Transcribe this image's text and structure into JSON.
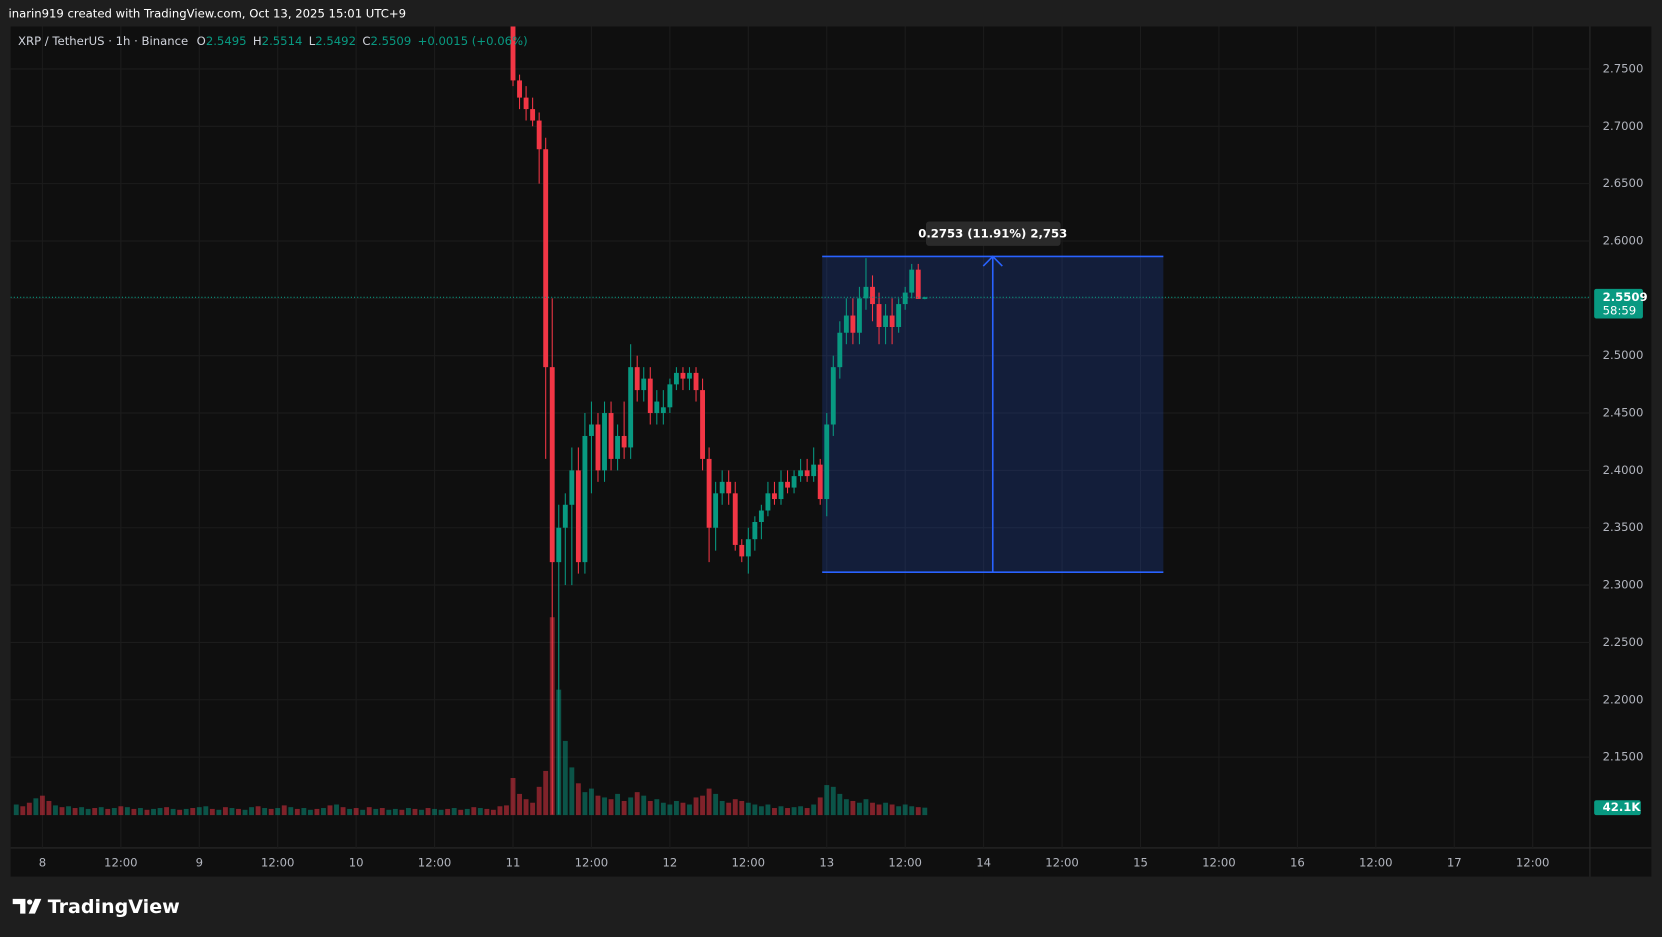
{
  "header": {
    "attribution": "inarin919 created with TradingView.com, Oct 13, 2025 15:01 UTC+9"
  },
  "footer": {
    "brand": "TradingView"
  },
  "chart_data": {
    "type": "candlestick",
    "symbol": "XRP / TetherUS · 1h · Binance",
    "ohlc_letters": [
      "O",
      "H",
      "L",
      "C"
    ],
    "change": "+0.0015 (+0.06%)",
    "up_color": "#089981",
    "down_color": "#f23645",
    "x": [
      72,
      73,
      74,
      75,
      76,
      77,
      78,
      79,
      80,
      81,
      82,
      83,
      84,
      85,
      86,
      87,
      88,
      89,
      90,
      91,
      92,
      93,
      94,
      95,
      96,
      97,
      98,
      99,
      100,
      101,
      102,
      103,
      104,
      105,
      106,
      107,
      108,
      109,
      110,
      111,
      112,
      113,
      114,
      115,
      116,
      117,
      118,
      119,
      120,
      121,
      122,
      123,
      124,
      125,
      126,
      127,
      128,
      129,
      130,
      131,
      132,
      133,
      134,
      135
    ],
    "open": [
      2.795,
      2.74,
      2.725,
      2.715,
      2.705,
      2.68,
      2.49,
      2.32,
      2.35,
      2.37,
      2.4,
      2.32,
      2.43,
      2.44,
      2.4,
      2.45,
      2.41,
      2.43,
      2.42,
      2.49,
      2.47,
      2.48,
      2.45,
      2.45,
      2.455,
      2.475,
      2.485,
      2.48,
      2.485,
      2.47,
      2.41,
      2.35,
      2.38,
      2.39,
      2.38,
      2.335,
      2.325,
      2.34,
      2.355,
      2.365,
      2.38,
      2.375,
      2.39,
      2.385,
      2.395,
      2.4,
      2.395,
      2.405,
      2.375,
      2.44,
      2.49,
      2.52,
      2.535,
      2.52,
      2.55,
      2.56,
      2.545,
      2.525,
      2.535,
      2.525,
      2.545,
      2.555,
      2.575,
      2.5495
    ],
    "high": [
      2.8,
      2.745,
      2.735,
      2.725,
      2.712,
      2.69,
      2.55,
      2.37,
      2.38,
      2.42,
      2.42,
      2.45,
      2.46,
      2.45,
      2.46,
      2.46,
      2.44,
      2.46,
      2.51,
      2.5,
      2.49,
      2.49,
      2.47,
      2.47,
      2.48,
      2.49,
      2.49,
      2.49,
      2.49,
      2.48,
      2.42,
      2.39,
      2.4,
      2.4,
      2.39,
      2.34,
      2.35,
      2.36,
      2.37,
      2.39,
      2.39,
      2.4,
      2.4,
      2.4,
      2.41,
      2.41,
      2.42,
      2.41,
      2.45,
      2.5,
      2.53,
      2.55,
      2.55,
      2.56,
      2.585,
      2.57,
      2.555,
      2.545,
      2.55,
      2.55,
      2.56,
      2.58,
      2.58,
      2.5514
    ],
    "low": [
      2.735,
      2.715,
      2.705,
      2.7,
      2.65,
      2.41,
      2.1,
      2.1,
      2.3,
      2.3,
      2.31,
      2.31,
      2.38,
      2.39,
      2.39,
      2.4,
      2.4,
      2.41,
      2.41,
      2.46,
      2.46,
      2.44,
      2.44,
      2.44,
      2.45,
      2.47,
      2.47,
      2.47,
      2.46,
      2.4,
      2.32,
      2.33,
      2.37,
      2.37,
      2.33,
      2.32,
      2.31,
      2.33,
      2.34,
      2.36,
      2.37,
      2.37,
      2.38,
      2.38,
      2.39,
      2.39,
      2.39,
      2.37,
      2.36,
      2.43,
      2.48,
      2.51,
      2.51,
      2.51,
      2.54,
      2.53,
      2.51,
      2.51,
      2.51,
      2.52,
      2.54,
      2.55,
      2.55,
      2.5492
    ],
    "close": [
      2.74,
      2.725,
      2.715,
      2.705,
      2.68,
      2.49,
      2.32,
      2.35,
      2.37,
      2.4,
      2.32,
      2.43,
      2.44,
      2.4,
      2.45,
      2.41,
      2.43,
      2.42,
      2.49,
      2.47,
      2.48,
      2.45,
      2.46,
      2.455,
      2.475,
      2.485,
      2.48,
      2.485,
      2.47,
      2.41,
      2.35,
      2.38,
      2.39,
      2.38,
      2.335,
      2.325,
      2.34,
      2.355,
      2.365,
      2.38,
      2.375,
      2.39,
      2.385,
      2.395,
      2.4,
      2.395,
      2.405,
      2.375,
      2.44,
      2.49,
      2.52,
      2.535,
      2.52,
      2.55,
      2.56,
      2.545,
      2.525,
      2.535,
      2.525,
      2.545,
      2.555,
      2.575,
      2.5495,
      2.5509
    ],
    "countdown": "58:59",
    "volume": {
      "x": [
        -4,
        -3,
        -2,
        -1,
        0,
        1,
        2,
        3,
        4,
        5,
        6,
        7,
        8,
        9,
        10,
        11,
        12,
        13,
        14,
        15,
        16,
        17,
        18,
        19,
        20,
        21,
        22,
        23,
        24,
        25,
        26,
        27,
        28,
        29,
        30,
        31,
        32,
        33,
        34,
        35,
        36,
        37,
        38,
        39,
        40,
        41,
        42,
        43,
        44,
        45,
        46,
        47,
        48,
        49,
        50,
        51,
        52,
        53,
        54,
        55,
        56,
        57,
        58,
        59,
        60,
        61,
        62,
        63,
        64,
        65,
        66,
        67,
        68,
        69,
        70,
        71,
        72,
        73,
        74,
        75,
        76,
        77,
        78,
        79,
        80,
        81,
        82,
        83,
        84,
        85,
        86,
        87,
        88,
        89,
        90,
        91,
        92,
        93,
        94,
        95,
        96,
        97,
        98,
        99,
        100,
        101,
        102,
        103,
        104,
        105,
        106,
        107,
        108,
        109,
        110,
        111,
        112,
        113,
        114,
        115,
        116,
        117,
        118,
        119,
        120,
        121,
        122,
        123,
        124,
        125,
        126,
        127,
        128,
        129,
        130,
        131,
        132,
        133,
        134,
        135
      ],
      "values": [
        60000,
        50000,
        70000,
        95000,
        110000,
        80000,
        55000,
        45000,
        50000,
        40000,
        45000,
        35000,
        40000,
        45000,
        35000,
        40000,
        50000,
        45000,
        35000,
        40000,
        30000,
        35000,
        40000,
        45000,
        35000,
        30000,
        35000,
        40000,
        45000,
        50000,
        35000,
        30000,
        45000,
        40000,
        35000,
        30000,
        45000,
        50000,
        40000,
        35000,
        40000,
        55000,
        45000,
        35000,
        40000,
        30000,
        35000,
        40000,
        55000,
        60000,
        45000,
        35000,
        40000,
        30000,
        45000,
        35000,
        40000,
        30000,
        35000,
        30000,
        40000,
        35000,
        30000,
        40000,
        35000,
        30000,
        35000,
        40000,
        30000,
        35000,
        45000,
        40000,
        35000,
        30000,
        50000,
        55000,
        210000,
        120000,
        90000,
        70000,
        160000,
        250000,
        1120000,
        710000,
        420000,
        270000,
        180000,
        130000,
        150000,
        110000,
        100000,
        90000,
        120000,
        80000,
        100000,
        130000,
        110000,
        80000,
        90000,
        70000,
        60000,
        80000,
        70000,
        60000,
        100000,
        110000,
        150000,
        120000,
        80000,
        70000,
        90000,
        80000,
        70000,
        60000,
        50000,
        60000,
        40000,
        50000,
        40000,
        45000,
        50000,
        40000,
        60000,
        100000,
        170000,
        160000,
        120000,
        90000,
        80000,
        70000,
        90000,
        70000,
        60000,
        70000,
        60000,
        50000,
        60000,
        50000,
        45000,
        42100
      ],
      "up": [
        true,
        false,
        false,
        true,
        false,
        false,
        true,
        false,
        true,
        false,
        true,
        true,
        false,
        true,
        false,
        true,
        false,
        true,
        false,
        true,
        false,
        true,
        true,
        false,
        true,
        false,
        true,
        false,
        true,
        true,
        false,
        true,
        false,
        true,
        false,
        true,
        true,
        false,
        true,
        false,
        true,
        false,
        true,
        false,
        true,
        true,
        false,
        true,
        false,
        true,
        false,
        true,
        false,
        true,
        false,
        true,
        false,
        true,
        true,
        false,
        true,
        false,
        true,
        false,
        true,
        true,
        false,
        true,
        false,
        true,
        false,
        true,
        false,
        false,
        false,
        false,
        false,
        false,
        false,
        false,
        false,
        false,
        false,
        true,
        true,
        true,
        false,
        true,
        true,
        false,
        true,
        false,
        true,
        false,
        true,
        false,
        true,
        false,
        true,
        true,
        true,
        true,
        false,
        true,
        false,
        false,
        false,
        true,
        true,
        false,
        false,
        false,
        true,
        true,
        true,
        true,
        false,
        true,
        false,
        true,
        true,
        false,
        true,
        false,
        true,
        true,
        true,
        true,
        false,
        true,
        true,
        false,
        false,
        true,
        false,
        true,
        true,
        true,
        false,
        true
      ],
      "ylim": [
        0,
        4464000
      ],
      "last_label": "42.1K"
    },
    "measure": {
      "x_start": 119.3,
      "x_end": 171.5,
      "from": 2.3112,
      "to": 2.5865,
      "label": "0.2753 (11.91%) 2,753",
      "color": "#2962ff"
    },
    "xlim": [
      -4.865,
      236.76
    ],
    "ylim": [
      2.0708,
      2.787
    ],
    "xticks": [
      {
        "value": 0,
        "label": "8"
      },
      {
        "value": 12,
        "label": "12:00"
      },
      {
        "value": 24,
        "label": "9"
      },
      {
        "value": 36,
        "label": "12:00"
      },
      {
        "value": 48,
        "label": "10"
      },
      {
        "value": 60,
        "label": "12:00"
      },
      {
        "value": 72,
        "label": "11"
      },
      {
        "value": 84,
        "label": "12:00"
      },
      {
        "value": 96,
        "label": "12"
      },
      {
        "value": 108,
        "label": "12:00"
      },
      {
        "value": 120,
        "label": "13"
      },
      {
        "value": 132,
        "label": "12:00"
      },
      {
        "value": 144,
        "label": "14"
      },
      {
        "value": 156,
        "label": "12:00"
      },
      {
        "value": 168,
        "label": "15"
      },
      {
        "value": 180,
        "label": "12:00"
      },
      {
        "value": 192,
        "label": "16"
      },
      {
        "value": 204,
        "label": "12:00"
      },
      {
        "value": 216,
        "label": "17"
      },
      {
        "value": 228,
        "label": "12:00"
      }
    ],
    "yticks": [
      {
        "value": 2.15,
        "label": "2.1500"
      },
      {
        "value": 2.2,
        "label": "2.2000"
      },
      {
        "value": 2.25,
        "label": "2.2500"
      },
      {
        "value": 2.3,
        "label": "2.3000"
      },
      {
        "value": 2.35,
        "label": "2.3500"
      },
      {
        "value": 2.4,
        "label": "2.4000"
      },
      {
        "value": 2.45,
        "label": "2.4500"
      },
      {
        "value": 2.5,
        "label": "2.5000"
      },
      {
        "value": 2.55,
        "label": "2.5500"
      },
      {
        "value": 2.6,
        "label": "2.6000"
      },
      {
        "value": 2.65,
        "label": "2.6500"
      },
      {
        "value": 2.7,
        "label": "2.7000"
      },
      {
        "value": 2.75,
        "label": "2.7500"
      }
    ],
    "grid": true
  }
}
